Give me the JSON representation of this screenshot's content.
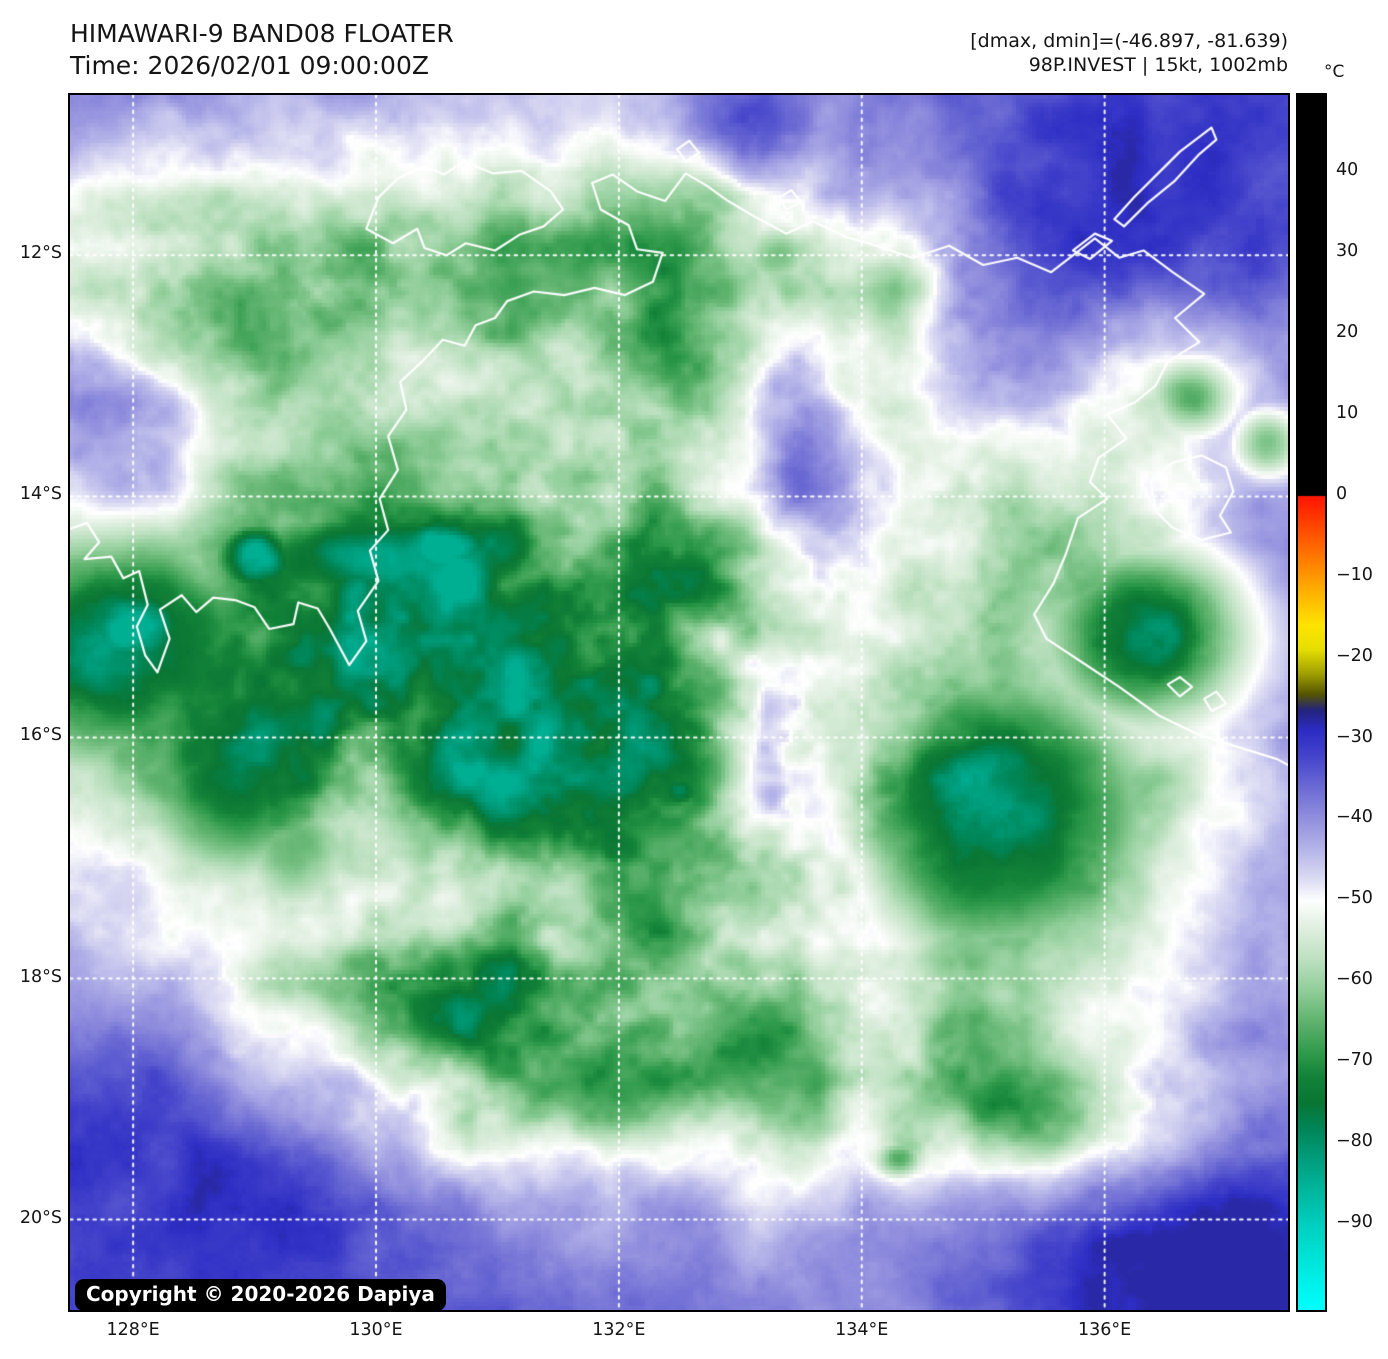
{
  "header": {
    "title": "HIMAWARI-9 BAND08 FLOATER",
    "time_line": "Time: 2026/02/01 09:00:00Z",
    "dmax_dmin": "[dmax, dmin]=(-46.897, -81.639)",
    "storm_info": "98P.INVEST | 15kt, 1002mb"
  },
  "colorbar": {
    "unit": "°C",
    "vmax": 49.5,
    "vmin": -100.6,
    "ticks": [
      {
        "value": 40,
        "label": "40"
      },
      {
        "value": 30,
        "label": "30"
      },
      {
        "value": 20,
        "label": "20"
      },
      {
        "value": 10,
        "label": "10"
      },
      {
        "value": 0,
        "label": "0"
      },
      {
        "value": -10,
        "label": "−10"
      },
      {
        "value": -20,
        "label": "−20"
      },
      {
        "value": -30,
        "label": "−30"
      },
      {
        "value": -40,
        "label": "−40"
      },
      {
        "value": -50,
        "label": "−50"
      },
      {
        "value": -60,
        "label": "−60"
      },
      {
        "value": -70,
        "label": "−70"
      },
      {
        "value": -80,
        "label": "−80"
      },
      {
        "value": -90,
        "label": "−90"
      }
    ],
    "stops": [
      [
        49.5,
        "#000000"
      ],
      [
        0.02,
        "#000000"
      ],
      [
        0,
        "#ff1400"
      ],
      [
        -6,
        "#ff6400"
      ],
      [
        -12,
        "#ffb300"
      ],
      [
        -16,
        "#ffe400"
      ],
      [
        -19,
        "#e6df00"
      ],
      [
        -22,
        "#a0a000"
      ],
      [
        -24.5,
        "#565600"
      ],
      [
        -26.5,
        "#24247e"
      ],
      [
        -29,
        "#2d2dc4"
      ],
      [
        -32,
        "#4343cb"
      ],
      [
        -36,
        "#6c6bd4"
      ],
      [
        -40,
        "#9391de"
      ],
      [
        -44,
        "#b9b8ea"
      ],
      [
        -47.5,
        "#dedef4"
      ],
      [
        -50,
        "#ffffff"
      ],
      [
        -53,
        "#e4f1e4"
      ],
      [
        -57,
        "#c0e2c3"
      ],
      [
        -61,
        "#93cf9c"
      ],
      [
        -65,
        "#5fb36e"
      ],
      [
        -69,
        "#2f9a4b"
      ],
      [
        -72,
        "#128238"
      ],
      [
        -75,
        "#0a7634"
      ],
      [
        -78,
        "#008556"
      ],
      [
        -82,
        "#009e7d"
      ],
      [
        -86,
        "#00b89f"
      ],
      [
        -90,
        "#00cfc0"
      ],
      [
        -95,
        "#00e8dd"
      ],
      [
        -100.6,
        "#00ffff"
      ]
    ]
  },
  "map": {
    "copyright": "Copyright © 2020-2026 Dapiya",
    "extent": {
      "lon_min": 127.48,
      "lon_max": 137.51,
      "lat_min": 10.67,
      "lat_max": 20.75
    },
    "x_ticks": [
      {
        "lon": 128,
        "label": "128°E"
      },
      {
        "lon": 130,
        "label": "130°E"
      },
      {
        "lon": 132,
        "label": "132°E"
      },
      {
        "lon": 134,
        "label": "134°E"
      },
      {
        "lon": 136,
        "label": "136°E"
      }
    ],
    "y_ticks": [
      {
        "lat": 12,
        "label": "12°S"
      },
      {
        "lat": 14,
        "label": "14°S"
      },
      {
        "lat": 16,
        "label": "16°S"
      },
      {
        "lat": 18,
        "label": "18°S"
      },
      {
        "lat": 20,
        "label": "20°S"
      }
    ],
    "features": {
      "envelope_blobs": [
        [
          130.9,
          11.9,
          3.6,
          1.35,
          24
        ],
        [
          128.3,
          12.4,
          1.8,
          1.0,
          16
        ],
        [
          133.6,
          12.1,
          1.4,
          1.0,
          16
        ],
        [
          129.9,
          14.8,
          2.9,
          1.5,
          27
        ],
        [
          130.0,
          16.6,
          2.9,
          1.8,
          25
        ],
        [
          132.5,
          15.9,
          1.7,
          2.0,
          20
        ],
        [
          132.2,
          13.6,
          1.5,
          1.1,
          15
        ],
        [
          134.9,
          16.7,
          2.2,
          1.9,
          24
        ],
        [
          135.5,
          14.2,
          1.5,
          1.2,
          20
        ],
        [
          136.6,
          12.9,
          0.9,
          0.8,
          15
        ],
        [
          132.3,
          18.7,
          2.4,
          1.2,
          22
        ],
        [
          130.6,
          18.6,
          1.2,
          0.9,
          20
        ],
        [
          135.9,
          19.25,
          1.4,
          0.7,
          17
        ],
        [
          134.3,
          19.0,
          1.1,
          0.6,
          12
        ]
      ],
      "core_blobs": [
        [
          127.85,
          15.25,
          1.2,
          1.0,
          40
        ],
        [
          128.0,
          15.1,
          0.55,
          0.45,
          46
        ],
        [
          128.85,
          16.35,
          0.8,
          0.85,
          33
        ],
        [
          130.15,
          14.5,
          1.4,
          0.42,
          40
        ],
        [
          130.55,
          14.42,
          0.5,
          0.28,
          46
        ],
        [
          129.0,
          14.5,
          0.35,
          0.3,
          44
        ],
        [
          131.3,
          14.9,
          0.45,
          0.4,
          30
        ],
        [
          132.57,
          16.3,
          0.6,
          0.55,
          36
        ],
        [
          132.5,
          16.45,
          0.25,
          0.2,
          42
        ],
        [
          134.95,
          16.6,
          1.3,
          1.15,
          40
        ],
        [
          134.85,
          16.35,
          0.7,
          0.6,
          43
        ],
        [
          136.35,
          15.15,
          0.8,
          0.68,
          40
        ],
        [
          136.7,
          13.15,
          0.4,
          0.36,
          30
        ],
        [
          137.35,
          13.55,
          0.3,
          0.3,
          26
        ],
        [
          130.85,
          18.25,
          0.8,
          0.45,
          28
        ],
        [
          131.95,
          18.95,
          0.6,
          0.4,
          29
        ],
        [
          133.0,
          18.5,
          0.4,
          0.32,
          28
        ],
        [
          129.35,
          16.95,
          0.5,
          0.55,
          26
        ],
        [
          131.05,
          16.3,
          0.5,
          0.45,
          24
        ],
        [
          133.3,
          12.0,
          0.35,
          0.3,
          26
        ],
        [
          134.35,
          12.2,
          0.3,
          0.25,
          24
        ],
        [
          131.15,
          12.5,
          0.5,
          0.3,
          24
        ],
        [
          135.35,
          19.2,
          0.35,
          0.3,
          24
        ],
        [
          134.3,
          19.5,
          0.22,
          0.18,
          26
        ]
      ],
      "warm_blobs": [
        [
          133.55,
          14.0,
          0.55,
          1.3,
          14
        ],
        [
          133.35,
          16.9,
          0.8,
          1.1,
          17
        ],
        [
          134.1,
          15.6,
          0.55,
          0.8,
          12
        ],
        [
          135.7,
          11.8,
          1.9,
          1.5,
          13
        ],
        [
          133.0,
          10.9,
          0.7,
          0.45,
          10
        ],
        [
          129.0,
          19.8,
          2.4,
          1.7,
          8
        ],
        [
          136.8,
          20.2,
          1.6,
          1.1,
          10
        ],
        [
          127.8,
          13.4,
          0.9,
          0.8,
          10
        ],
        [
          138.3,
          21.3,
          2.6,
          2.2,
          5
        ]
      ]
    },
    "coastlines": [
      [
        [
          127.45,
          14.28
        ],
        [
          127.62,
          14.22
        ],
        [
          127.72,
          14.38
        ],
        [
          127.6,
          14.52
        ],
        [
          127.82,
          14.5
        ],
        [
          127.92,
          14.68
        ],
        [
          128.05,
          14.62
        ],
        [
          128.12,
          14.9
        ],
        [
          128.03,
          15.08
        ],
        [
          128.1,
          15.32
        ],
        [
          128.2,
          15.46
        ],
        [
          128.3,
          15.18
        ],
        [
          128.22,
          14.94
        ],
        [
          128.4,
          14.82
        ],
        [
          128.52,
          14.96
        ],
        [
          128.66,
          14.84
        ],
        [
          128.84,
          14.86
        ],
        [
          129.0,
          14.92
        ],
        [
          129.12,
          15.1
        ],
        [
          129.32,
          15.06
        ],
        [
          129.36,
          14.88
        ],
        [
          129.52,
          14.93
        ],
        [
          129.62,
          15.1
        ],
        [
          129.78,
          15.4
        ],
        [
          129.92,
          15.2
        ],
        [
          129.85,
          14.95
        ],
        [
          130.02,
          14.7
        ],
        [
          129.95,
          14.45
        ],
        [
          130.1,
          14.28
        ],
        [
          130.03,
          14.02
        ],
        [
          130.18,
          13.78
        ],
        [
          130.1,
          13.5
        ],
        [
          130.25,
          13.28
        ],
        [
          130.2,
          13.05
        ],
        [
          130.38,
          12.88
        ],
        [
          130.55,
          12.7
        ],
        [
          130.73,
          12.75
        ],
        [
          130.82,
          12.58
        ],
        [
          130.98,
          12.52
        ],
        [
          131.08,
          12.38
        ],
        [
          131.3,
          12.3
        ],
        [
          131.55,
          12.33
        ],
        [
          131.8,
          12.27
        ],
        [
          132.05,
          12.33
        ],
        [
          132.28,
          12.22
        ],
        [
          132.36,
          11.98
        ],
        [
          132.15,
          11.95
        ],
        [
          132.08,
          11.75
        ],
        [
          131.85,
          11.62
        ],
        [
          131.78,
          11.4
        ],
        [
          131.95,
          11.33
        ],
        [
          132.15,
          11.47
        ],
        [
          132.38,
          11.55
        ],
        [
          132.55,
          11.32
        ],
        [
          132.72,
          11.42
        ],
        [
          132.9,
          11.55
        ],
        [
          133.12,
          11.68
        ],
        [
          133.38,
          11.82
        ],
        [
          133.6,
          11.72
        ],
        [
          133.88,
          11.85
        ],
        [
          134.12,
          11.92
        ],
        [
          134.42,
          12.02
        ],
        [
          134.72,
          11.92
        ],
        [
          135.0,
          12.08
        ],
        [
          135.28,
          12.02
        ],
        [
          135.56,
          12.14
        ],
        [
          135.92,
          11.86
        ],
        [
          136.12,
          12.02
        ],
        [
          136.32,
          11.96
        ],
        [
          136.56,
          12.14
        ],
        [
          136.82,
          12.32
        ],
        [
          136.58,
          12.52
        ],
        [
          136.78,
          12.72
        ],
        [
          136.52,
          12.88
        ],
        [
          136.42,
          13.08
        ],
        [
          136.25,
          13.22
        ],
        [
          136.02,
          13.32
        ],
        [
          136.18,
          13.52
        ],
        [
          135.95,
          13.68
        ],
        [
          135.88,
          13.88
        ],
        [
          136.02,
          14.02
        ],
        [
          135.78,
          14.18
        ],
        [
          135.68,
          14.48
        ],
        [
          135.58,
          14.72
        ],
        [
          135.42,
          14.98
        ],
        [
          135.52,
          15.18
        ],
        [
          135.82,
          15.38
        ],
        [
          136.12,
          15.58
        ],
        [
          136.45,
          15.82
        ],
        [
          136.78,
          15.98
        ],
        [
          137.1,
          16.08
        ],
        [
          137.42,
          16.18
        ],
        [
          137.55,
          16.25
        ]
      ],
      [
        [
          129.92,
          11.78
        ],
        [
          130.02,
          11.52
        ],
        [
          130.18,
          11.36
        ],
        [
          130.4,
          11.26
        ],
        [
          130.56,
          11.33
        ],
        [
          130.72,
          11.22
        ],
        [
          130.96,
          11.32
        ],
        [
          131.2,
          11.3
        ],
        [
          131.44,
          11.47
        ],
        [
          131.54,
          11.62
        ],
        [
          131.38,
          11.76
        ],
        [
          131.18,
          11.83
        ],
        [
          130.98,
          11.96
        ],
        [
          130.74,
          11.9
        ],
        [
          130.58,
          12.0
        ],
        [
          130.4,
          11.94
        ],
        [
          130.34,
          11.78
        ],
        [
          130.14,
          11.9
        ],
        [
          129.92,
          11.78
        ]
      ],
      [
        [
          136.88,
          10.94
        ],
        [
          136.62,
          11.14
        ],
        [
          136.44,
          11.32
        ],
        [
          136.24,
          11.52
        ],
        [
          136.08,
          11.7
        ],
        [
          136.16,
          11.76
        ],
        [
          136.36,
          11.56
        ],
        [
          136.58,
          11.38
        ],
        [
          136.78,
          11.16
        ],
        [
          136.92,
          11.04
        ],
        [
          136.88,
          10.94
        ]
      ],
      [
        [
          135.92,
          11.82
        ],
        [
          135.74,
          11.96
        ],
        [
          135.88,
          12.03
        ],
        [
          136.06,
          11.88
        ],
        [
          135.92,
          11.82
        ]
      ],
      [
        [
          136.38,
          13.88
        ],
        [
          136.56,
          13.72
        ],
        [
          136.8,
          13.66
        ],
        [
          137.0,
          13.76
        ],
        [
          137.06,
          13.96
        ],
        [
          136.95,
          14.16
        ],
        [
          137.04,
          14.3
        ],
        [
          136.8,
          14.36
        ],
        [
          136.56,
          14.26
        ],
        [
          136.42,
          14.12
        ],
        [
          136.38,
          13.88
        ]
      ],
      [
        [
          136.52,
          15.56
        ],
        [
          136.62,
          15.5
        ],
        [
          136.72,
          15.58
        ],
        [
          136.62,
          15.66
        ],
        [
          136.52,
          15.56
        ]
      ],
      [
        [
          136.82,
          15.68
        ],
        [
          136.92,
          15.62
        ],
        [
          137.0,
          15.72
        ],
        [
          136.88,
          15.78
        ],
        [
          136.82,
          15.68
        ]
      ],
      [
        [
          132.48,
          11.12
        ],
        [
          132.58,
          11.05
        ],
        [
          132.66,
          11.15
        ],
        [
          132.55,
          11.22
        ],
        [
          132.48,
          11.12
        ]
      ],
      [
        [
          133.32,
          11.52
        ],
        [
          133.42,
          11.46
        ],
        [
          133.5,
          11.56
        ],
        [
          133.38,
          11.62
        ],
        [
          133.32,
          11.52
        ]
      ]
    ]
  }
}
